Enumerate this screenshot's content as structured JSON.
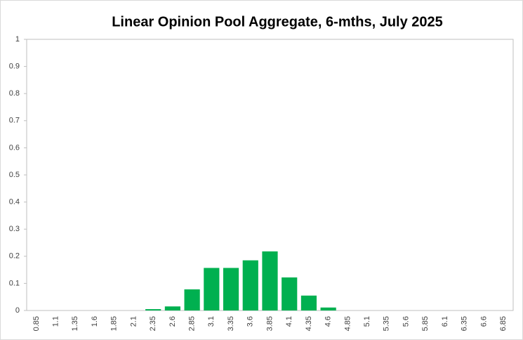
{
  "chart_data": {
    "type": "bar",
    "title": "Linear Opinion Pool Aggregate, 6-mths, July 2025",
    "categories": [
      "0.85",
      "1.1",
      "1.35",
      "1.6",
      "1.85",
      "2.1",
      "2.35",
      "2.6",
      "2.85",
      "3.1",
      "3.35",
      "3.6",
      "3.85",
      "4.1",
      "4.35",
      "4.6",
      "4.85",
      "5.1",
      "5.35",
      "5.6",
      "5.85",
      "6.1",
      "6.35",
      "6.6",
      "6.85"
    ],
    "values": [
      0,
      0,
      0,
      0,
      0,
      0,
      0.005,
      0.015,
      0.078,
      0.157,
      0.157,
      0.185,
      0.218,
      0.122,
      0.055,
      0.011,
      0,
      0,
      0,
      0,
      0,
      0,
      0,
      0,
      0
    ],
    "color": "#00b050",
    "ylim": [
      0,
      1
    ],
    "yticks": [
      0,
      0.1,
      0.2,
      0.3,
      0.4,
      0.5,
      0.6,
      0.7,
      0.8,
      0.9,
      1
    ],
    "grid": false
  }
}
